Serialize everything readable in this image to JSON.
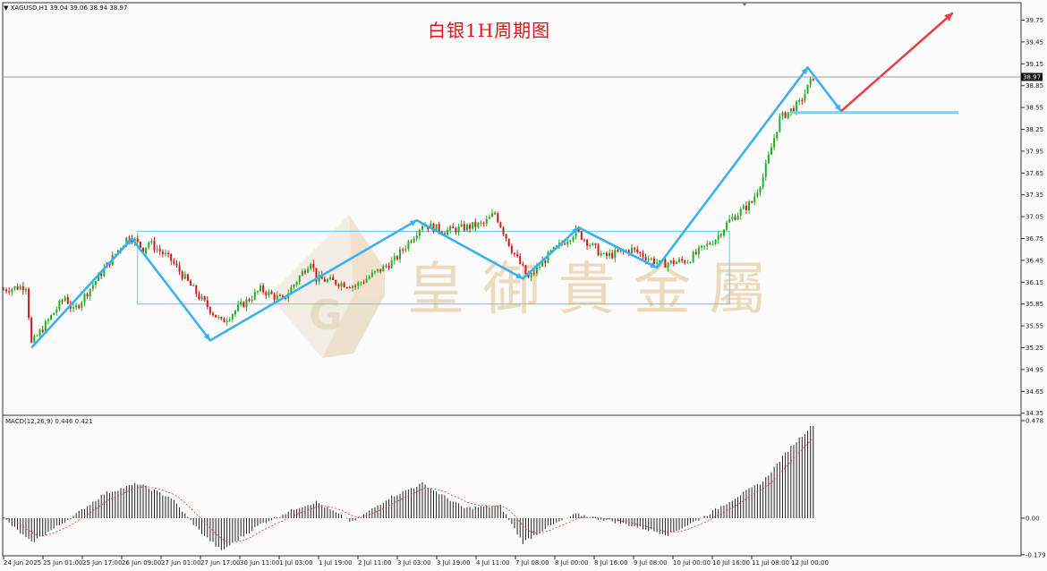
{
  "header": {
    "symbol_text": "▼ XAGUSD,H1  39.04 39.06 38.94 38.97",
    "chart_title": "白银1H周期图",
    "watermark_text": "皇 御 貴 金 屬",
    "watermark_logo": "G"
  },
  "price_axis": {
    "ticks": [
      "39.75",
      "39.45",
      "39.15",
      "38.85",
      "38.55",
      "38.25",
      "37.95",
      "37.65",
      "37.35",
      "37.05",
      "36.75",
      "36.45",
      "36.15",
      "35.85",
      "35.55",
      "35.25",
      "34.95",
      "34.65",
      "34.35"
    ],
    "current_price": "38.97",
    "current_price_value": 38.97
  },
  "macd": {
    "label": "MACD(12,26,9) 0.446 0.421",
    "ticks": [
      "0.478",
      "0.00",
      "-0.179"
    ]
  },
  "time_axis": {
    "labels": [
      "24 Jun 2025",
      "25 Jun 01:00",
      "25 Jun 17:00",
      "26 Jun 09:00",
      "27 Jun 01:00",
      "27 Jun 17:00",
      "30 Jun 11:00",
      "1 Jul 03:00",
      "1 Jul 19:00",
      "2 Jul 11:00",
      "3 Jul 03:00",
      "3 Jul 19:00",
      "4 Jul 11:00",
      "7 Jul 08:00",
      "8 Jul 00:00",
      "8 Jul 16:00",
      "9 Jul 08:00",
      "10 Jul 00:00",
      "10 Jul 16:00",
      "11 Jul 08:00",
      "12 Jul 00:00"
    ]
  },
  "colors": {
    "bull": "#20b020",
    "bear": "#d01818",
    "wave": "#3ab0f0",
    "forecast": "#e84040",
    "range_box": "#5fc8ea",
    "support": "#7ad0f0",
    "title": "#e0151b",
    "watermark": "#e8cfa8"
  },
  "chart_data": {
    "type": "candlestick",
    "symbol": "XAGUSD",
    "timeframe": "H1",
    "ohlc_last": {
      "open": 39.04,
      "high": 39.06,
      "low": 38.94,
      "close": 38.97
    },
    "ylim": [
      34.35,
      39.75
    ],
    "anchors": [
      {
        "i": 0,
        "p": 36.05
      },
      {
        "i": 8,
        "p": 36.1
      },
      {
        "i": 10,
        "p": 35.3
      },
      {
        "i": 22,
        "p": 35.95
      },
      {
        "i": 25,
        "p": 35.75
      },
      {
        "i": 45,
        "p": 36.8
      },
      {
        "i": 50,
        "p": 36.6
      },
      {
        "i": 52,
        "p": 36.7
      },
      {
        "i": 60,
        "p": 36.45
      },
      {
        "i": 70,
        "p": 35.95
      },
      {
        "i": 78,
        "p": 35.6
      },
      {
        "i": 92,
        "p": 36.05
      },
      {
        "i": 100,
        "p": 35.9
      },
      {
        "i": 110,
        "p": 36.45
      },
      {
        "i": 112,
        "p": 36.2
      },
      {
        "i": 126,
        "p": 36.1
      },
      {
        "i": 140,
        "p": 36.45
      },
      {
        "i": 150,
        "p": 36.95
      },
      {
        "i": 158,
        "p": 36.85
      },
      {
        "i": 172,
        "p": 36.95
      },
      {
        "i": 176,
        "p": 37.1
      },
      {
        "i": 182,
        "p": 36.6
      },
      {
        "i": 188,
        "p": 36.2
      },
      {
        "i": 196,
        "p": 36.55
      },
      {
        "i": 205,
        "p": 36.85
      },
      {
        "i": 215,
        "p": 36.5
      },
      {
        "i": 225,
        "p": 36.6
      },
      {
        "i": 235,
        "p": 36.4
      },
      {
        "i": 245,
        "p": 36.45
      },
      {
        "i": 255,
        "p": 36.75
      },
      {
        "i": 260,
        "p": 37.0
      },
      {
        "i": 268,
        "p": 37.25
      },
      {
        "i": 272,
        "p": 37.6
      },
      {
        "i": 278,
        "p": 38.4
      },
      {
        "i": 285,
        "p": 38.6
      },
      {
        "i": 290,
        "p": 38.97
      }
    ],
    "wave_points": [
      {
        "i": 10,
        "p": 35.25
      },
      {
        "i": 46,
        "p": 36.75
      },
      {
        "i": 74,
        "p": 35.35
      },
      {
        "i": 148,
        "p": 37.0
      },
      {
        "i": 186,
        "p": 36.2
      },
      {
        "i": 206,
        "p": 36.9
      },
      {
        "i": 234,
        "p": 36.35
      },
      {
        "i": 288,
        "p": 39.1
      },
      {
        "i": 300,
        "p": 38.5
      }
    ],
    "forecast_points": [
      {
        "i": 300,
        "p": 38.5
      },
      {
        "i": 340,
        "p": 39.85
      }
    ],
    "range_box": {
      "i_start": 48,
      "i_end": 260,
      "top": 36.85,
      "bottom": 35.85
    },
    "support_line": {
      "i_start": 282,
      "i_end": 342,
      "p": 38.48
    },
    "macd_anchors": [
      {
        "i": 0,
        "m": 0.0
      },
      {
        "i": 10,
        "m": -0.12
      },
      {
        "i": 25,
        "m": 0.01
      },
      {
        "i": 36,
        "m": 0.12
      },
      {
        "i": 48,
        "m": 0.17
      },
      {
        "i": 60,
        "m": 0.1
      },
      {
        "i": 70,
        "m": -0.06
      },
      {
        "i": 78,
        "m": -0.16
      },
      {
        "i": 92,
        "m": -0.03
      },
      {
        "i": 105,
        "m": 0.05
      },
      {
        "i": 112,
        "m": 0.08
      },
      {
        "i": 125,
        "m": -0.02
      },
      {
        "i": 138,
        "m": 0.1
      },
      {
        "i": 150,
        "m": 0.17
      },
      {
        "i": 165,
        "m": 0.05
      },
      {
        "i": 178,
        "m": 0.06
      },
      {
        "i": 186,
        "m": -0.12
      },
      {
        "i": 194,
        "m": -0.05
      },
      {
        "i": 205,
        "m": 0.02
      },
      {
        "i": 220,
        "m": -0.02
      },
      {
        "i": 238,
        "m": -0.08
      },
      {
        "i": 250,
        "m": 0.0
      },
      {
        "i": 262,
        "m": 0.1
      },
      {
        "i": 272,
        "m": 0.18
      },
      {
        "i": 282,
        "m": 0.35
      },
      {
        "i": 290,
        "m": 0.46
      }
    ],
    "macd_ylim": [
      -0.179,
      0.478
    ]
  }
}
